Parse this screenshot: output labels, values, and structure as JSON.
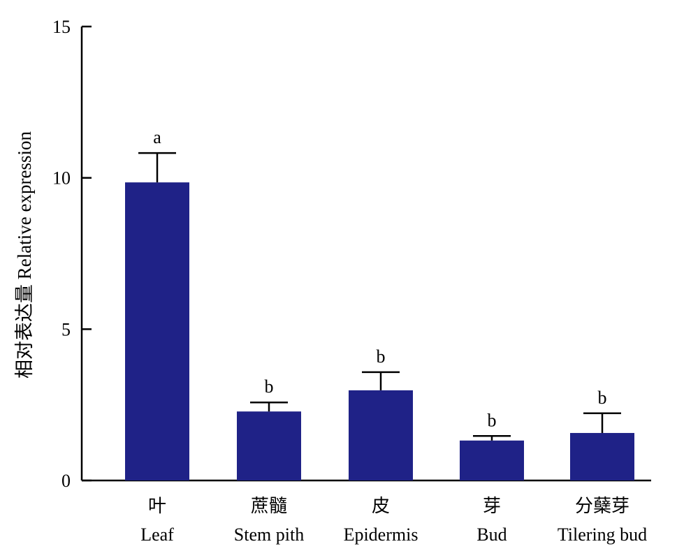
{
  "chart_data": {
    "type": "bar",
    "title": "",
    "xlabel": "",
    "ylabel": "相对表达量 Relative expression",
    "ylim": [
      0,
      15
    ],
    "yticks": [
      0,
      5,
      10,
      15
    ],
    "grid": false,
    "bar_color": "#1f2287",
    "categories": [
      {
        "zh": "叶",
        "en": "Leaf"
      },
      {
        "zh": "蔗髓",
        "en": "Stem pith"
      },
      {
        "zh": "皮",
        "en": "Epidermis"
      },
      {
        "zh": "芽",
        "en": "Bud"
      },
      {
        "zh": "分蘖芽",
        "en": "Tilering bud"
      }
    ],
    "values": [
      9.85,
      2.28,
      2.98,
      1.32,
      1.57
    ],
    "errors": [
      0.97,
      0.3,
      0.6,
      0.15,
      0.65
    ],
    "significance": [
      "a",
      "b",
      "b",
      "b",
      "b"
    ]
  }
}
